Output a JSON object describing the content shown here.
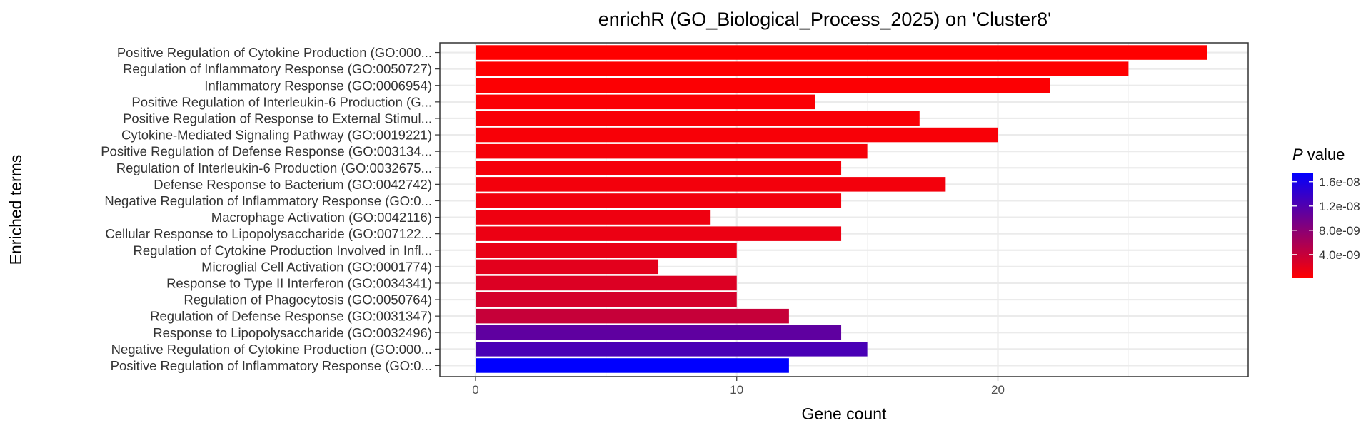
{
  "chart_data": {
    "type": "bar",
    "orientation": "horizontal",
    "title": "enrichR (GO_Biological_Process_2025) on 'Cluster8'",
    "xlabel": "Gene count",
    "ylabel": "Enriched terms",
    "xlim": [
      0,
      29
    ],
    "xticks": [
      0,
      10,
      20
    ],
    "grid": true,
    "legend": {
      "title_italic": "P",
      "title_rest": " value",
      "position": "right",
      "labels": [
        "1.6e-08",
        "1.2e-08",
        "8.0e-09",
        "4.0e-09"
      ],
      "label_values": [
        1.6e-08,
        1.2e-08,
        8e-09,
        4e-09
      ],
      "min": 1e-10,
      "max": 1.75e-08,
      "low_color": "#ff0000",
      "high_color": "#0000ff"
    },
    "categories": [
      "Positive Regulation of Cytokine Production (GO:000...",
      "Regulation of Inflammatory Response (GO:0050727)",
      "Inflammatory Response (GO:0006954)",
      "Positive Regulation of Interleukin-6 Production (G...",
      "Positive Regulation of Response to External Stimul...",
      "Cytokine-Mediated Signaling Pathway (GO:0019221)",
      "Positive Regulation of Defense Response (GO:003134...",
      "Regulation of Interleukin-6 Production (GO:0032675...",
      "Defense Response to Bacterium (GO:0042742)",
      "Negative Regulation of Inflammatory Response (GO:0...",
      "Macrophage Activation (GO:0042116)",
      "Cellular Response to Lipopolysaccharide (GO:007122...",
      "Regulation of Cytokine Production Involved in Infl...",
      "Microglial Cell Activation (GO:0001774)",
      "Response to Type II Interferon (GO:0034341)",
      "Regulation of Phagocytosis (GO:0050764)",
      "Regulation of Defense Response (GO:0031347)",
      "Response to Lipopolysaccharide (GO:0032496)",
      "Negative Regulation of Cytokine Production (GO:000...",
      "Positive Regulation of Inflammatory Response (GO:0..."
    ],
    "values": [
      28,
      25,
      22,
      13,
      17,
      20,
      15,
      14,
      18,
      14,
      9,
      14,
      10,
      7,
      10,
      10,
      12,
      14,
      15,
      12
    ],
    "pvalues": [
      1e-10,
      2e-10,
      3e-10,
      4e-10,
      5e-10,
      6e-10,
      7e-10,
      8e-10,
      9e-10,
      1e-09,
      1.2e-09,
      1.4e-09,
      1.6e-09,
      2e-09,
      2.5e-09,
      3e-09,
      4e-09,
      1.1e-08,
      1.25e-08,
      1.75e-08
    ],
    "colors": {
      "panel_border": "#333333",
      "grid_major": "#ebebeb",
      "grid_minor": "#f5f5f5",
      "tick": "#333333"
    }
  }
}
